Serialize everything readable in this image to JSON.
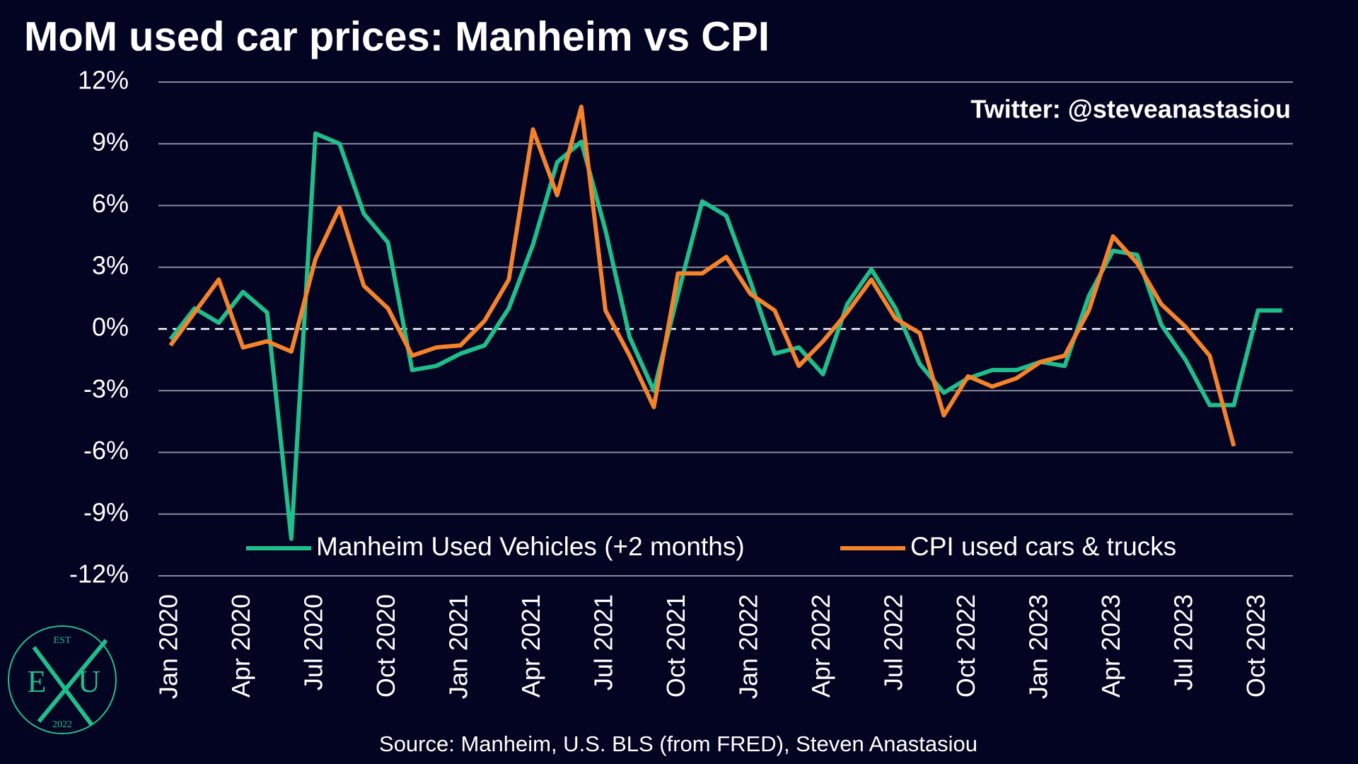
{
  "chart_data": {
    "type": "line",
    "title": "MoM used car prices: Manheim vs CPI",
    "annotation": "Twitter: @steveanastasiou",
    "source": "Source: Manheim, U.S. BLS (from FRED), Steven Anastasiou",
    "logo": {
      "top": "EST",
      "left": "E",
      "right": "U",
      "bottom": "2022"
    },
    "categories": [
      "Jan 2020",
      null,
      null,
      "Apr 2020",
      null,
      null,
      "Jul 2020",
      null,
      null,
      "Oct 2020",
      null,
      null,
      "Jan 2021",
      null,
      null,
      "Apr 2021",
      null,
      null,
      "Jul 2021",
      null,
      null,
      "Oct 2021",
      null,
      null,
      "Jan 2022",
      null,
      null,
      "Apr 2022",
      null,
      null,
      "Jul 2022",
      null,
      null,
      "Oct 2022",
      null,
      null,
      "Jan 2023",
      null,
      null,
      "Apr 2023",
      null,
      null,
      "Jul 2023",
      null,
      null,
      "Oct 2023",
      null
    ],
    "series": [
      {
        "name": "Manheim Used Vehicles (+2 months)",
        "color": "#1fbf8c",
        "values": [
          -0.5,
          1.0,
          0.3,
          1.8,
          0.8,
          -10.2,
          9.5,
          9.0,
          5.6,
          4.2,
          -2.0,
          -1.8,
          -1.2,
          -0.8,
          1.0,
          4.1,
          8.1,
          9.1,
          4.8,
          -0.4,
          -3.0,
          1.7,
          6.2,
          5.5,
          2.3,
          -1.2,
          -0.9,
          -2.2,
          1.2,
          2.9,
          1.0,
          -1.7,
          -3.1,
          -2.4,
          -2.0,
          -2.0,
          -1.6,
          -1.8,
          1.6,
          3.8,
          3.6,
          0.2,
          -1.5,
          -3.7,
          -3.7,
          0.9,
          0.9
        ]
      },
      {
        "name": "CPI used cars & trucks",
        "color": "#f5832a",
        "values": [
          -0.8,
          0.8,
          2.4,
          -0.9,
          -0.6,
          -1.1,
          3.4,
          5.9,
          2.1,
          1.0,
          -1.3,
          -0.9,
          -0.8,
          0.4,
          2.4,
          9.7,
          6.5,
          10.8,
          0.9,
          -1.3,
          -3.8,
          2.7,
          2.7,
          3.5,
          1.7,
          0.9,
          -1.8,
          -0.6,
          0.8,
          2.4,
          0.5,
          -0.2,
          -4.2,
          -2.3,
          -2.8,
          -2.4,
          -1.6,
          -1.3,
          0.9,
          4.5,
          3.2,
          1.2,
          0.1,
          -1.3,
          -5.7,
          null,
          null
        ]
      }
    ],
    "ylim": [
      -12,
      12
    ],
    "yticks": [
      {
        "value": -12,
        "label": "-12%"
      },
      {
        "value": -9,
        "label": "-9%"
      },
      {
        "value": -6,
        "label": "-6%"
      },
      {
        "value": -3,
        "label": "-3%"
      },
      {
        "value": 0,
        "label": "0%"
      },
      {
        "value": 3,
        "label": "3%"
      },
      {
        "value": 6,
        "label": "6%"
      },
      {
        "value": 9,
        "label": "9%"
      },
      {
        "value": 12,
        "label": "12%"
      }
    ],
    "grid": true
  }
}
